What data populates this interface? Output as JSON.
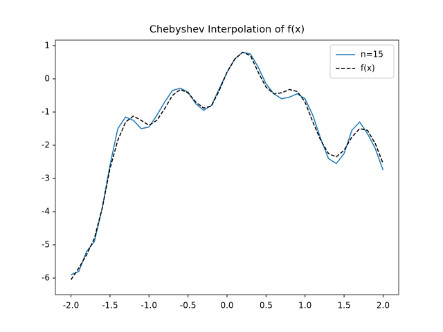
{
  "chart_data": {
    "type": "line",
    "title": "Chebyshev Interpolation of f(x)",
    "x": [
      -2.0,
      -1.9,
      -1.8,
      -1.7,
      -1.6,
      -1.5,
      -1.4,
      -1.3,
      -1.2,
      -1.1,
      -1.0,
      -0.9,
      -0.8,
      -0.7,
      -0.6,
      -0.5,
      -0.4,
      -0.3,
      -0.2,
      -0.1,
      0.0,
      0.1,
      0.2,
      0.3,
      0.4,
      0.5,
      0.6,
      0.7,
      0.8,
      0.9,
      1.0,
      1.1,
      1.2,
      1.3,
      1.4,
      1.5,
      1.6,
      1.7,
      1.8,
      1.9,
      2.0
    ],
    "series": [
      {
        "name": "n=15",
        "color": "#1f77b4",
        "linestyle": "solid",
        "values": [
          -5.9,
          -5.8,
          -5.2,
          -4.9,
          -3.9,
          -2.6,
          -1.5,
          -1.15,
          -1.25,
          -1.5,
          -1.45,
          -1.1,
          -0.7,
          -0.35,
          -0.28,
          -0.4,
          -0.75,
          -0.95,
          -0.8,
          -0.3,
          0.2,
          0.6,
          0.8,
          0.75,
          0.35,
          -0.15,
          -0.45,
          -0.6,
          -0.55,
          -0.45,
          -0.6,
          -1.1,
          -1.8,
          -2.4,
          -2.55,
          -2.25,
          -1.55,
          -1.3,
          -1.65,
          -2.1,
          -2.75
        ]
      },
      {
        "name": "f(x)",
        "color": "#000000",
        "linestyle": "dashed",
        "values": [
          -6.05,
          -5.7,
          -5.3,
          -4.8,
          -3.9,
          -2.7,
          -1.85,
          -1.3,
          -1.12,
          -1.25,
          -1.4,
          -1.25,
          -0.9,
          -0.5,
          -0.32,
          -0.42,
          -0.7,
          -0.88,
          -0.82,
          -0.35,
          0.2,
          0.6,
          0.8,
          0.7,
          0.2,
          -0.25,
          -0.45,
          -0.42,
          -0.32,
          -0.38,
          -0.7,
          -1.3,
          -1.85,
          -2.25,
          -2.35,
          -2.15,
          -1.75,
          -1.5,
          -1.55,
          -1.95,
          -2.55
        ]
      }
    ],
    "xlim": [
      -2.2,
      2.2
    ],
    "xticks": [
      {
        "value": -2.0,
        "label": "-2.0"
      },
      {
        "value": -1.5,
        "label": "-1.5"
      },
      {
        "value": -1.0,
        "label": "-1.0"
      },
      {
        "value": -0.5,
        "label": "-0.5"
      },
      {
        "value": 0.0,
        "label": "0.0"
      },
      {
        "value": 0.5,
        "label": "0.5"
      },
      {
        "value": 1.0,
        "label": "1.0"
      },
      {
        "value": 1.5,
        "label": "1.5"
      },
      {
        "value": 2.0,
        "label": "2.0"
      }
    ],
    "ylim": [
      -6.5,
      1.167
    ],
    "yticks": [
      1,
      0,
      -1,
      -2,
      -3,
      -4,
      -5,
      -6
    ],
    "legend": "upper right"
  }
}
